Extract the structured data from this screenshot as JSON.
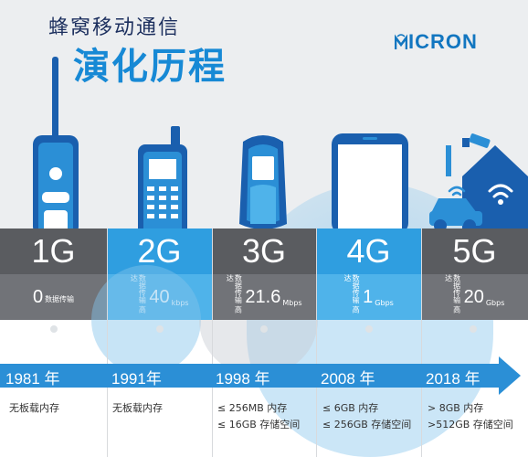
{
  "header": {
    "subtitle": "蜂窝移动通信",
    "title": "演化历程",
    "logo": "MICRON"
  },
  "generations": [
    {
      "label": "1G",
      "speed_num": "0",
      "speed_text": "数据传输",
      "unit": "",
      "year": "1981 年",
      "memory": [
        "无板载内存"
      ]
    },
    {
      "label": "2G",
      "speed_num": "40",
      "speed_text": "数据传输 高达",
      "unit": "kbps",
      "year": "1991年",
      "memory": [
        "无板载内存"
      ]
    },
    {
      "label": "3G",
      "speed_num": "21.6",
      "speed_text": "数据传输 高达",
      "unit": "Mbps",
      "year": "1998 年",
      "memory": [
        "≤ 256MB 内存",
        "≤ 16GB 存储空间"
      ]
    },
    {
      "label": "4G",
      "speed_num": "1",
      "speed_text": "数据传输 高达",
      "unit": "Gbps",
      "year": "2008 年",
      "memory": [
        "≤ 6GB 内存",
        "≤ 256GB 存储空间"
      ]
    },
    {
      "label": "5G",
      "speed_num": "20",
      "speed_text": "数据传输 高达",
      "unit": "Gbps",
      "year": "2018 年",
      "memory": [
        "> 8GB 内存",
        ">512GB 存储空间"
      ]
    }
  ],
  "colors": {
    "blue": "#2f9ee0",
    "dark": "#5a5c60",
    "timeline": "#2b8fd6",
    "title": "#1789d5"
  },
  "icons": [
    "brick-phone-icon",
    "candybar-phone-icon",
    "nokia-phone-icon",
    "smartphone-icon",
    "smart-home-car-icon"
  ]
}
